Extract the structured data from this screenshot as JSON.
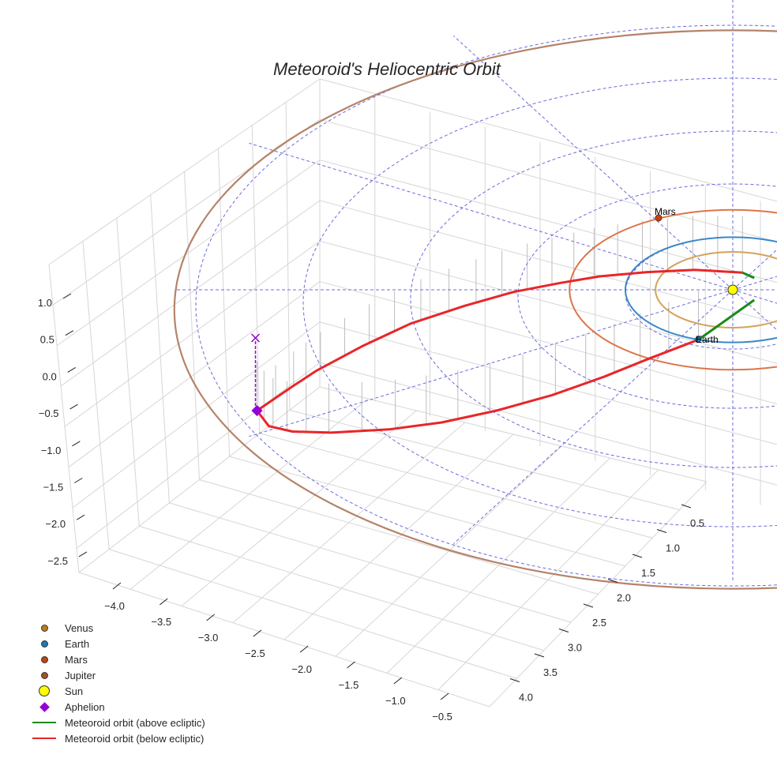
{
  "chart_data": {
    "type": "line",
    "projection": "3d",
    "title": "Meteoroid's Heliocentric Orbit",
    "xlabel": "",
    "ylabel": "",
    "zlabel": "",
    "x_ticks": [
      "−4.0",
      "−3.5",
      "−3.0",
      "−2.5",
      "−2.0",
      "−1.5",
      "−1.0",
      "−0.5"
    ],
    "y_ticks": [
      "0.5",
      "1.0",
      "1.5",
      "2.0",
      "2.5",
      "3.0",
      "3.5",
      "4.0"
    ],
    "z_ticks": [
      "1.0",
      "0.5",
      "0.0",
      "−0.5",
      "−1.0",
      "−1.5",
      "−2.0",
      "−2.5"
    ],
    "grid": true,
    "planets": [
      {
        "name": "Venus",
        "orbit_radius_au": 0.72,
        "color": "#d4a35a",
        "marker_color": "#c07a1e"
      },
      {
        "name": "Earth",
        "orbit_radius_au": 1.0,
        "color": "#3a88c8",
        "marker_color": "#1f77b4",
        "label": "Earth"
      },
      {
        "name": "Mars",
        "orbit_radius_au": 1.52,
        "color": "#dd7448",
        "marker_color": "#c1440e",
        "label": "Mars"
      },
      {
        "name": "Jupiter",
        "orbit_radius_au": 5.2,
        "color": "#b5836a",
        "marker_color": "#a0522d"
      }
    ],
    "reference_circles_au": [
      1,
      2,
      3,
      4,
      5
    ],
    "radial_lines_deg": [
      0,
      30,
      60,
      90,
      120,
      150,
      180,
      210,
      240,
      270,
      300,
      330
    ],
    "meteoroid_below": {
      "color": "#e8262a",
      "upper_branch": [
        [
          -4.43,
          2.25
        ],
        [
          -4.1,
          1.8
        ],
        [
          -3.88,
          1.51
        ],
        [
          -3.45,
          1.05
        ],
        [
          -3.0,
          0.63
        ],
        [
          -2.5,
          0.3
        ],
        [
          -2.04,
          0.04
        ],
        [
          -1.6,
          -0.13
        ],
        [
          -1.24,
          -0.25
        ],
        [
          -0.8,
          -0.33
        ],
        [
          -0.35,
          -0.37
        ],
        [
          0.09,
          -0.32
        ]
      ],
      "lower_branch": [
        [
          -4.43,
          2.25
        ],
        [
          -4.32,
          2.54
        ],
        [
          -4.1,
          2.64
        ],
        [
          -3.74,
          2.66
        ],
        [
          -3.2,
          2.6
        ],
        [
          -2.71,
          2.47
        ],
        [
          -2.2,
          2.25
        ],
        [
          -1.68,
          1.96
        ],
        [
          -1.2,
          1.62
        ],
        [
          -0.79,
          1.29
        ],
        [
          -0.32,
          0.93
        ]
      ]
    },
    "meteoroid_above": {
      "color": "#1a8a1a",
      "segments": [
        [
          [
            0.09,
            -0.32
          ],
          [
            0.2,
            -0.22
          ]
        ],
        [
          [
            -0.32,
            0.93
          ],
          [
            -0.06,
            0.56
          ],
          [
            0.2,
            0.19
          ]
        ]
      ]
    },
    "aphelion": {
      "position": [
        -4.43,
        2.25
      ],
      "color": "#9400d3"
    },
    "legend": [
      {
        "label": "Venus",
        "kind": "dot",
        "color": "#c07a1e"
      },
      {
        "label": "Earth",
        "kind": "dot",
        "color": "#1f77b4"
      },
      {
        "label": "Mars",
        "kind": "dot",
        "color": "#c1440e"
      },
      {
        "label": "Jupiter",
        "kind": "dot",
        "color": "#a0522d"
      },
      {
        "label": "Sun",
        "kind": "sun",
        "color": "#ffff00"
      },
      {
        "label": "Aphelion",
        "kind": "diamond",
        "color": "#9400d3"
      },
      {
        "label": "Meteoroid orbit (above ecliptic)",
        "kind": "line",
        "color": "#1a8a1a"
      },
      {
        "label": "Meteoroid orbit (below ecliptic)",
        "kind": "line",
        "color": "#e8262a"
      }
    ],
    "legend_position": "bottom-left",
    "annotations": [
      "Mars",
      "Earth"
    ]
  }
}
